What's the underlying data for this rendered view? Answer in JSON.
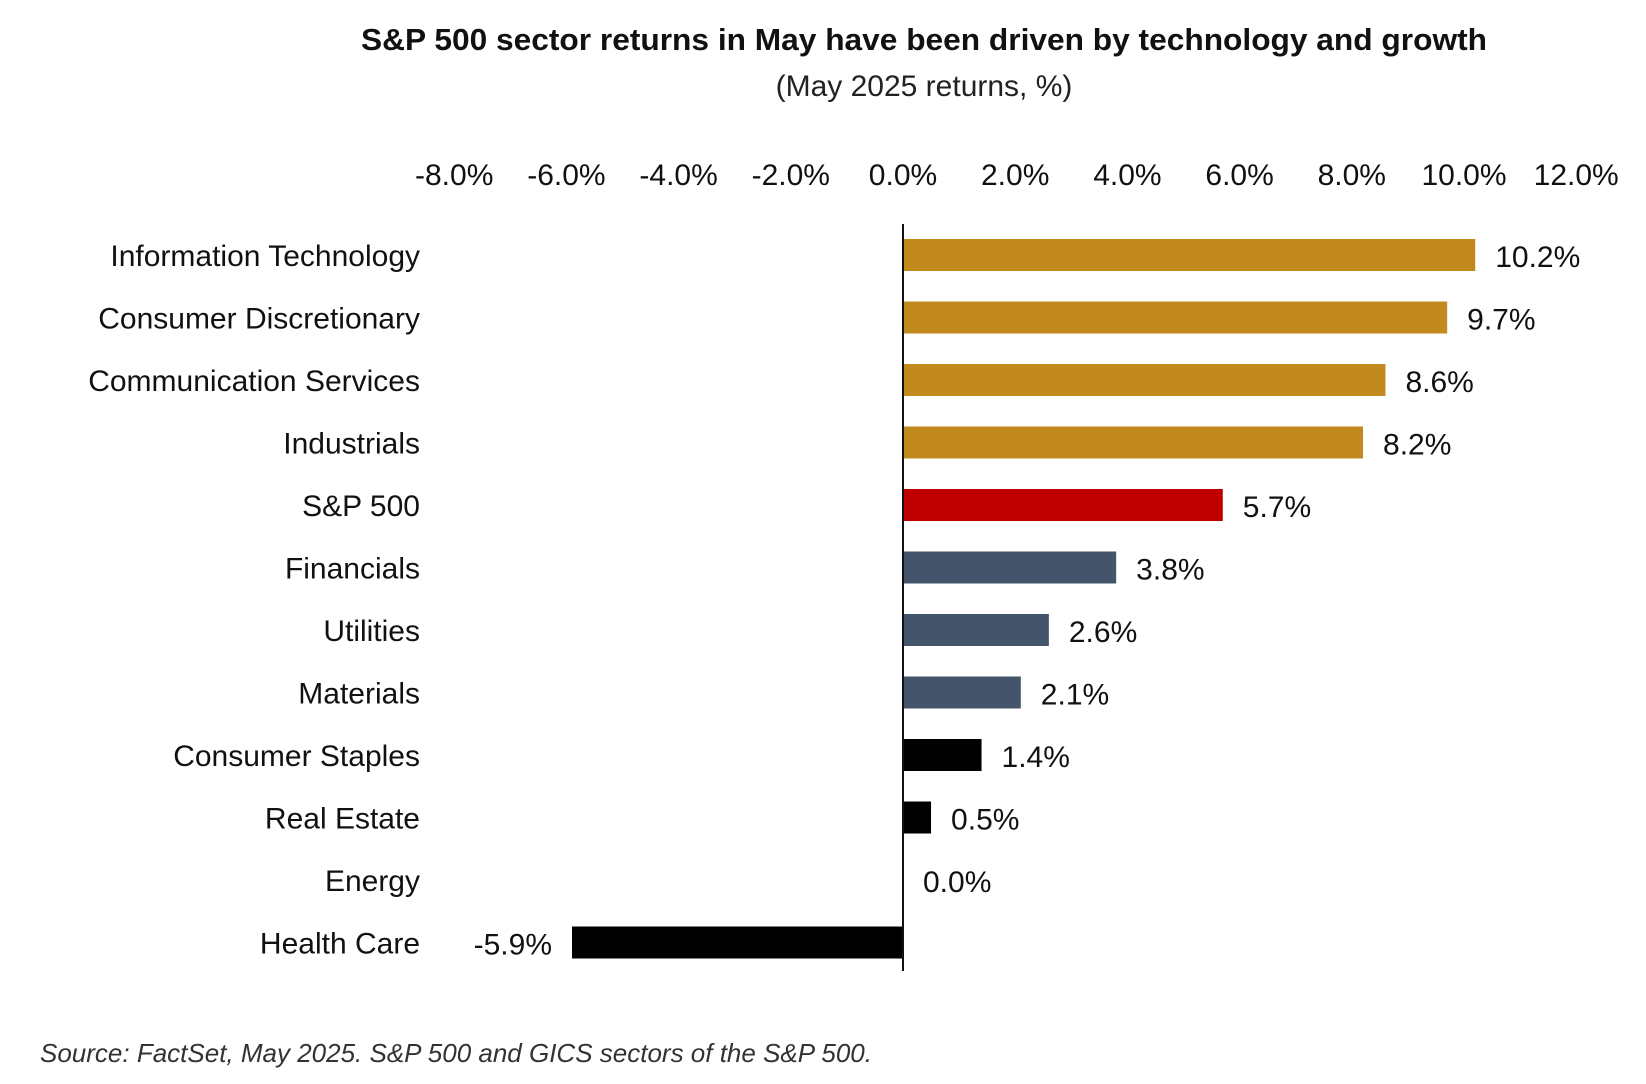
{
  "chart_data": {
    "type": "bar",
    "orientation": "horizontal",
    "title": "S&P 500 sector returns in May have been driven by technology and growth",
    "subtitle": "(May 2025 returns, %)",
    "xlabel": "",
    "ylabel": "",
    "xlim": [
      -8,
      12
    ],
    "x_ticks": [
      -8,
      -6,
      -4,
      -2,
      0,
      2,
      4,
      6,
      8,
      10,
      12
    ],
    "x_tick_labels": [
      "-8.0%",
      "-6.0%",
      "-4.0%",
      "-2.0%",
      "0.0%",
      "2.0%",
      "4.0%",
      "6.0%",
      "8.0%",
      "10.0%",
      "12.0%"
    ],
    "grid": false,
    "categories": [
      "Information Technology",
      "Consumer Discretionary",
      "Communication Services",
      "Industrials",
      "S&P 500",
      "Financials",
      "Utilities",
      "Materials",
      "Consumer Staples",
      "Real Estate",
      "Energy",
      "Health Care"
    ],
    "values": [
      10.2,
      9.7,
      8.6,
      8.2,
      5.7,
      3.8,
      2.6,
      2.1,
      1.4,
      0.5,
      0.0,
      -5.9
    ],
    "data_labels": [
      "10.2%",
      "9.7%",
      "8.6%",
      "8.2%",
      "5.7%",
      "3.8%",
      "2.6%",
      "2.1%",
      "1.4%",
      "0.5%",
      "0.0%",
      "-5.9%"
    ],
    "bar_colors": [
      "#C28A1C",
      "#C28A1C",
      "#C28A1C",
      "#C28A1C",
      "#C00000",
      "#44546A",
      "#44546A",
      "#44546A",
      "#000000",
      "#000000",
      "#000000",
      "#000000"
    ]
  },
  "source": "Source: FactSet, May 2025. S&P 500 and GICS sectors of the S&P 500."
}
